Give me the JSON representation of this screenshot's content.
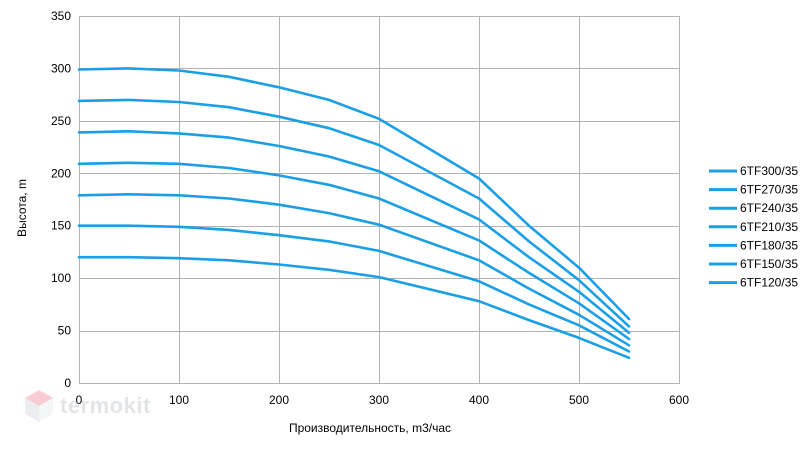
{
  "chart_data": {
    "type": "line",
    "xlabel": "Производительность, m3/час",
    "ylabel": "Высота, m",
    "xlim": [
      0,
      600
    ],
    "ylim": [
      0,
      350
    ],
    "xticks": [
      0,
      100,
      200,
      300,
      400,
      500,
      600
    ],
    "yticks": [
      0,
      50,
      100,
      150,
      200,
      250,
      300,
      350
    ],
    "grid": "vertical and horizontal major",
    "legend_position": "right",
    "color": "#1a9fe6",
    "x": [
      0,
      50,
      100,
      150,
      200,
      250,
      300,
      400,
      450,
      500,
      550
    ],
    "series": [
      {
        "name": "6TF300/35",
        "values": [
          299,
          300,
          298,
          292,
          282,
          270,
          252,
          195,
          150,
          110,
          61
        ]
      },
      {
        "name": "6TF270/35",
        "values": [
          269,
          270,
          268,
          263,
          254,
          243,
          227,
          176,
          135,
          98,
          54
        ]
      },
      {
        "name": "6TF240/35",
        "values": [
          239,
          240,
          238,
          234,
          226,
          216,
          202,
          156,
          120,
          87,
          48
        ]
      },
      {
        "name": "6TF210/35",
        "values": [
          209,
          210,
          209,
          205,
          198,
          189,
          176,
          136,
          105,
          76,
          42
        ]
      },
      {
        "name": "6TF180/35",
        "values": [
          179,
          180,
          179,
          176,
          170,
          162,
          151,
          117,
          90,
          65,
          36
        ]
      },
      {
        "name": "6TF150/35",
        "values": [
          150,
          150,
          149,
          146,
          141,
          135,
          126,
          97,
          75,
          55,
          30
        ]
      },
      {
        "name": "6TF120/35",
        "values": [
          120,
          120,
          119,
          117,
          113,
          108,
          101,
          78,
          60,
          43,
          24
        ]
      }
    ]
  },
  "watermark": {
    "text": "termokit",
    "icon": "cube-logo-icon"
  }
}
